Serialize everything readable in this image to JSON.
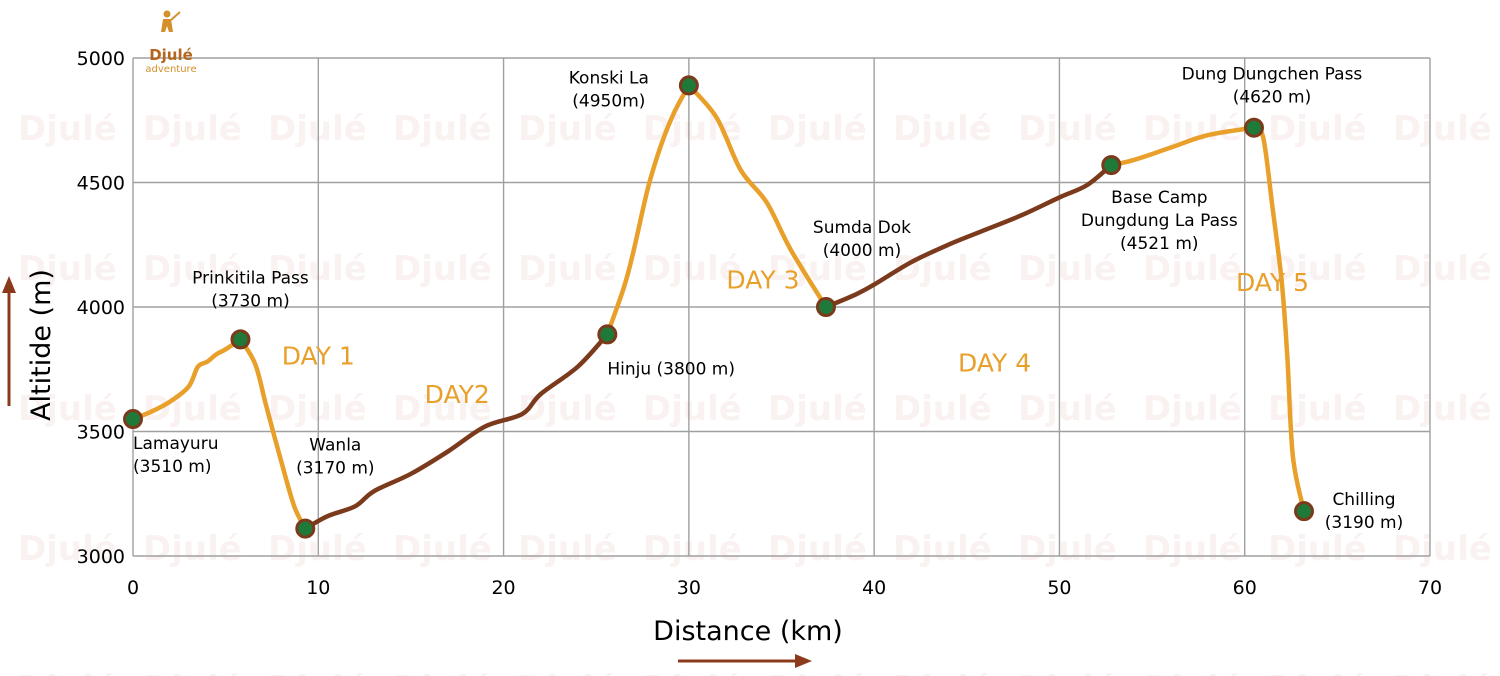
{
  "logo": {
    "name": "Djulé",
    "sub": "adventure"
  },
  "colors": {
    "orange_segment": "#e8a02b",
    "brown_segment": "#7b3a1c",
    "marker_fill": "#1f7a3a",
    "marker_stroke": "#7b3a1c",
    "day_label": "#e8a02b",
    "grid": "#a0a0a0",
    "arrow": "#8b3a1c"
  },
  "chart_data": {
    "type": "line",
    "xlabel": "Distance (km)",
    "ylabel": "Altitide (m)",
    "xlim": [
      0,
      70
    ],
    "ylim": [
      3000,
      5000
    ],
    "x_ticks": [
      "0",
      "10",
      "20",
      "30",
      "40",
      "50",
      "60",
      "70"
    ],
    "y_ticks": [
      "3000",
      "3500",
      "4000",
      "4500",
      "5000"
    ],
    "grid": true,
    "waypoints": [
      {
        "name": "Lamayuru",
        "elev_label": "(3510 m)",
        "x": 0,
        "y": 3550
      },
      {
        "name": "Prinkitila Pass",
        "elev_label": "(3730 m)",
        "x": 5.8,
        "y": 3870
      },
      {
        "name": "Wanla",
        "elev_label": "(3170 m)",
        "x": 9.3,
        "y": 3110
      },
      {
        "name": "Hinju (3800 m)",
        "elev_label": "",
        "x": 25.6,
        "y": 3890
      },
      {
        "name": "Konski La",
        "elev_label": "(4950m)",
        "x": 30,
        "y": 4890
      },
      {
        "name": "Sumda Dok",
        "elev_label": "(4000 m)",
        "x": 37.4,
        "y": 4000
      },
      {
        "name": "Base Camp",
        "elev_label": "Dungdung La Pass",
        "elev_label2": "(4521 m)",
        "x": 52.8,
        "y": 4570
      },
      {
        "name": "Dung Dungchen Pass",
        "elev_label": "(4620 m)",
        "x": 60.5,
        "y": 4720
      },
      {
        "name": "Chilling",
        "elev_label": "(3190 m)",
        "x": 63.2,
        "y": 3180
      }
    ],
    "segments": [
      {
        "day": "DAY 1",
        "color": "orange",
        "points": [
          [
            0,
            3550
          ],
          [
            1,
            3580
          ],
          [
            2,
            3620
          ],
          [
            3,
            3680
          ],
          [
            3.5,
            3760
          ],
          [
            4,
            3780
          ],
          [
            4.5,
            3810
          ],
          [
            5,
            3830
          ],
          [
            5.8,
            3870
          ]
        ]
      },
      {
        "day": "DAY 1",
        "color": "orange",
        "points": [
          [
            5.8,
            3870
          ],
          [
            6.6,
            3770
          ],
          [
            7.2,
            3600
          ],
          [
            8.0,
            3380
          ],
          [
            8.7,
            3200
          ],
          [
            9.3,
            3110
          ]
        ]
      },
      {
        "day": "DAY2",
        "color": "brown",
        "points": [
          [
            9.3,
            3110
          ],
          [
            10.5,
            3160
          ],
          [
            12,
            3200
          ],
          [
            13,
            3260
          ],
          [
            15,
            3330
          ],
          [
            17,
            3420
          ],
          [
            19,
            3520
          ],
          [
            21,
            3570
          ],
          [
            22,
            3650
          ],
          [
            24,
            3760
          ],
          [
            25.6,
            3890
          ]
        ]
      },
      {
        "day": "DAY 3",
        "color": "orange",
        "points": [
          [
            25.6,
            3890
          ],
          [
            26.5,
            4080
          ],
          [
            27.0,
            4220
          ],
          [
            27.8,
            4480
          ],
          [
            28.5,
            4650
          ],
          [
            29.2,
            4780
          ],
          [
            30,
            4890
          ]
        ]
      },
      {
        "day": "DAY 3",
        "color": "orange",
        "points": [
          [
            30,
            4890
          ],
          [
            31.5,
            4760
          ],
          [
            32.8,
            4550
          ],
          [
            34.2,
            4420
          ],
          [
            35.5,
            4230
          ],
          [
            37.4,
            4000
          ]
        ]
      },
      {
        "day": "DAY 4",
        "color": "brown",
        "points": [
          [
            37.4,
            4000
          ],
          [
            39,
            4050
          ],
          [
            40,
            4090
          ],
          [
            42,
            4180
          ],
          [
            44,
            4250
          ],
          [
            46,
            4310
          ],
          [
            48,
            4370
          ],
          [
            50,
            4440
          ],
          [
            51.5,
            4490
          ],
          [
            52.8,
            4570
          ]
        ]
      },
      {
        "day": "DAY 5",
        "color": "orange",
        "points": [
          [
            52.8,
            4570
          ],
          [
            54,
            4590
          ],
          [
            56,
            4640
          ],
          [
            58,
            4690
          ],
          [
            60.5,
            4720
          ]
        ]
      },
      {
        "day": "DAY 5",
        "color": "orange",
        "points": [
          [
            60.5,
            4720
          ],
          [
            61,
            4680
          ],
          [
            61.5,
            4400
          ],
          [
            62,
            4100
          ],
          [
            62.3,
            3800
          ],
          [
            62.6,
            3400
          ],
          [
            63.2,
            3180
          ]
        ]
      }
    ],
    "day_labels": [
      {
        "text": "DAY 1",
        "x": 10,
        "y": 3770
      },
      {
        "text": "DAY2",
        "x": 17.5,
        "y": 3615
      },
      {
        "text": "DAY 3",
        "x": 34,
        "y": 4075
      },
      {
        "text": "DAY 4",
        "x": 46.5,
        "y": 3740
      },
      {
        "text": "DAY 5",
        "x": 61.5,
        "y": 4065
      }
    ]
  }
}
